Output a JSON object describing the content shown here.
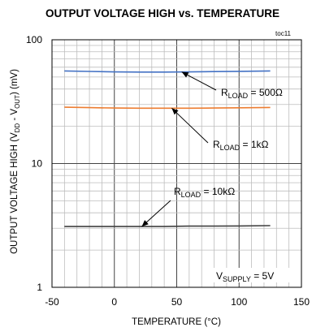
{
  "chart_data": {
    "type": "line",
    "title": "OUTPUT VOLTAGE HIGH vs. TEMPERATURE",
    "figure_id": "toc11",
    "xlabel": "TEMPERATURE (°C)",
    "ylabel": "OUTPUT VOLTAGE HIGH (V_DD - V_OUT) (mV)",
    "x_scale": "linear",
    "y_scale": "log",
    "xlim": [
      -50,
      150
    ],
    "ylim": [
      1,
      100
    ],
    "x_ticks": [
      -50,
      0,
      50,
      100,
      150
    ],
    "x_tick_labels": [
      "-50",
      "0",
      "50",
      "100",
      "150"
    ],
    "y_ticks": [
      1,
      10,
      100
    ],
    "y_tick_labels": [
      "1",
      "10",
      "100"
    ],
    "grid": true,
    "series": [
      {
        "name": "R_LOAD = 500Ω",
        "color": "#4472c4",
        "x": [
          -40,
          -20,
          0,
          20,
          40,
          60,
          80,
          100,
          125
        ],
        "y": [
          56,
          55.5,
          55,
          54.8,
          54.8,
          55,
          55.3,
          55.6,
          56
        ]
      },
      {
        "name": "R_LOAD = 1kΩ",
        "color": "#ed7d31",
        "x": [
          -40,
          -20,
          0,
          20,
          40,
          60,
          80,
          100,
          125
        ],
        "y": [
          28.5,
          28.3,
          28.1,
          28,
          28,
          28,
          28.1,
          28.2,
          28.4
        ]
      },
      {
        "name": "R_LOAD = 10kΩ",
        "color": "#404040",
        "x": [
          -40,
          -20,
          0,
          20,
          40,
          60,
          80,
          100,
          125
        ],
        "y": [
          3.1,
          3.1,
          3.1,
          3.1,
          3.1,
          3.12,
          3.12,
          3.13,
          3.15
        ]
      }
    ],
    "annotations": [
      {
        "main": "R",
        "sub": "LOAD",
        "rest": " = 500Ω",
        "target_series": 0
      },
      {
        "main": "R",
        "sub": "LOAD",
        "rest": " = 1kΩ",
        "target_series": 1
      },
      {
        "main": "R",
        "sub": "LOAD",
        "rest": " = 10kΩ",
        "target_series": 2
      }
    ],
    "condition": {
      "main": "V",
      "sub": "SUPPLY",
      "rest": " = 5V"
    }
  }
}
